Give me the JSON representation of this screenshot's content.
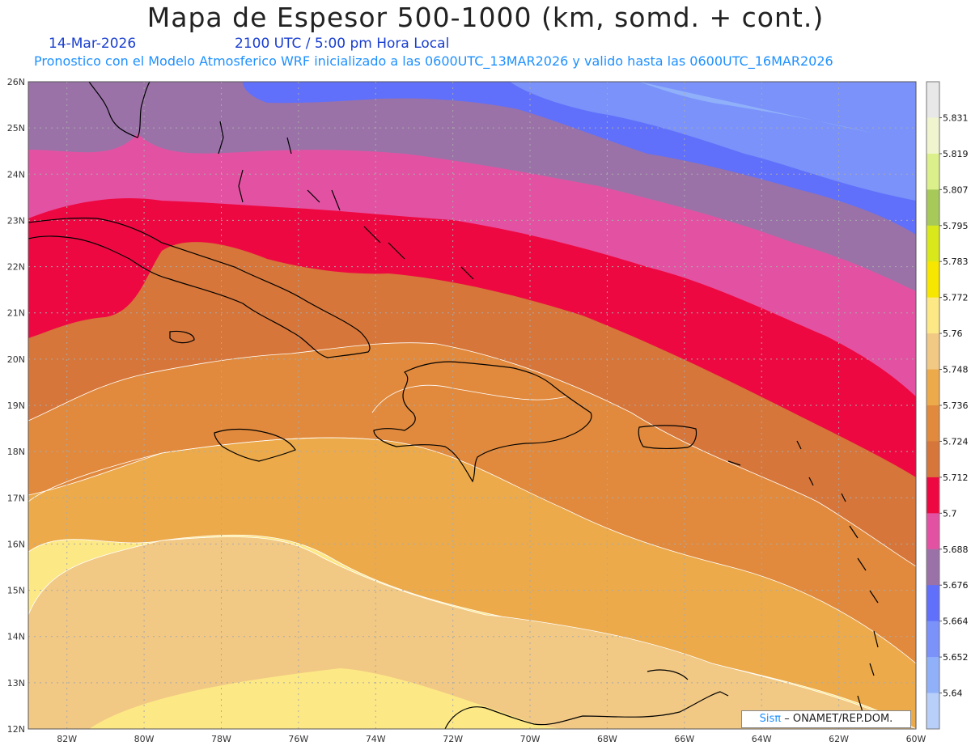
{
  "title": "Mapa de Espesor 500-1000 (km, somd. + cont.)",
  "date": "14-Mar-2026",
  "time_label": "2100 UTC / 5:00 pm Hora Local",
  "run_info": "Pronostico con el Modelo Atmosferico WRF inicializado a las 0600UTC_13MAR2026 y valido hasta las  0600UTC_16MAR2026",
  "credit": {
    "brand": "Sisπ",
    "org": "– ONAMET/REP.DOM."
  },
  "map": {
    "lon_range": [
      -83,
      -60
    ],
    "lat_range": [
      12,
      26
    ],
    "lon_ticks": [
      "82W",
      "80W",
      "78W",
      "76W",
      "74W",
      "72W",
      "70W",
      "68W",
      "66W",
      "64W",
      "62W",
      "60W"
    ],
    "lat_ticks": [
      "26N",
      "25N",
      "24N",
      "23N",
      "22N",
      "21N",
      "20N",
      "19N",
      "18N",
      "17N",
      "16N",
      "15N",
      "14N",
      "13N",
      "12N"
    ]
  },
  "colorbar": {
    "labels": [
      "5.831",
      "5.819",
      "5.807",
      "5.795",
      "5.783",
      "5.772",
      "5.76",
      "5.748",
      "5.736",
      "5.724",
      "5.712",
      "5.7",
      "5.688",
      "5.676",
      "5.664",
      "5.652",
      "5.64"
    ],
    "colors": [
      "#e8e8e8",
      "#f0f5d0",
      "#dbf08a",
      "#a6c95a",
      "#d9e81a",
      "#f6e600",
      "#fde886",
      "#f1c884",
      "#ecaa4a",
      "#e18a3d",
      "#d6763a",
      "#ee0842",
      "#e352a2",
      "#9a72a8",
      "#6070fa",
      "#7a92fa",
      "#90b0fa",
      "#b8cffa"
    ]
  }
}
